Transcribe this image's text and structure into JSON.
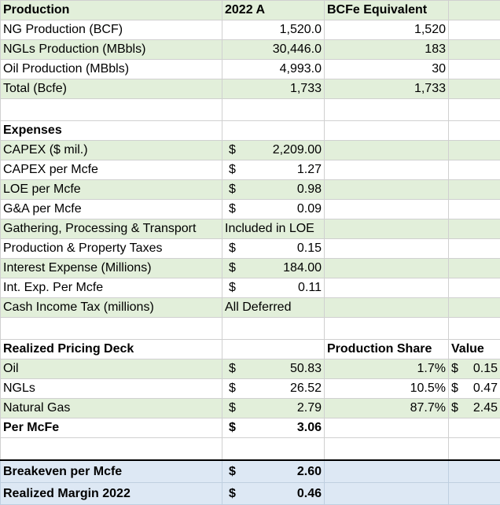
{
  "production": {
    "header": {
      "label": "Production",
      "col_a": "2022 A",
      "col_b": "BCFe Equivalent"
    },
    "rows": [
      {
        "label": "NG Production (BCF)",
        "a": "1,520.0",
        "b": "1,520"
      },
      {
        "label": "NGLs Production (MBbls)",
        "a": "30,446.0",
        "b": "183"
      },
      {
        "label": "Oil Production (MBbls)",
        "a": "4,993.0",
        "b": "30"
      },
      {
        "label": "Total (Bcfe)",
        "a": "1,733",
        "b": "1,733"
      }
    ]
  },
  "expenses": {
    "header": "Expenses",
    "rows": [
      {
        "label": "CAPEX ($ mil.)",
        "cur": "$",
        "val": "2,209.00"
      },
      {
        "label": "CAPEX per Mcfe",
        "cur": "$",
        "val": "1.27"
      },
      {
        "label": "LOE per Mcfe",
        "cur": "$",
        "val": "0.98"
      },
      {
        "label": "G&A per Mcfe",
        "cur": "$",
        "val": "0.09"
      },
      {
        "label": "Gathering, Processing & Transport",
        "text": "Included in LOE"
      },
      {
        "label": "Production & Property Taxes",
        "cur": "$",
        "val": "0.15"
      },
      {
        "label": "Interest Expense (Millions)",
        "cur": "$",
        "val": "184.00"
      },
      {
        "label": "Int. Exp. Per Mcfe",
        "cur": "$",
        "val": "0.11"
      },
      {
        "label": "Cash Income Tax (millions)",
        "text": "All Deferred"
      }
    ]
  },
  "pricing": {
    "header": {
      "label": "Realized Pricing Deck",
      "share": "Production Share",
      "value": "Value"
    },
    "rows": [
      {
        "label": "Oil",
        "cur": "$",
        "val": "50.83",
        "share": "1.7%",
        "vcur": "$",
        "vval": "0.15"
      },
      {
        "label": "NGLs",
        "cur": "$",
        "val": "26.52",
        "share": "10.5%",
        "vcur": "$",
        "vval": "0.47"
      },
      {
        "label": "Natural Gas",
        "cur": "$",
        "val": "2.79",
        "share": "87.7%",
        "vcur": "$",
        "vval": "2.45"
      }
    ],
    "total": {
      "label": "Per McFe",
      "cur": "$",
      "val": "3.06"
    }
  },
  "summary": {
    "breakeven": {
      "label": "Breakeven per Mcfe",
      "cur": "$",
      "val": "2.60"
    },
    "margin": {
      "label": "Realized Margin 2022",
      "cur": "$",
      "val": "0.46"
    }
  }
}
